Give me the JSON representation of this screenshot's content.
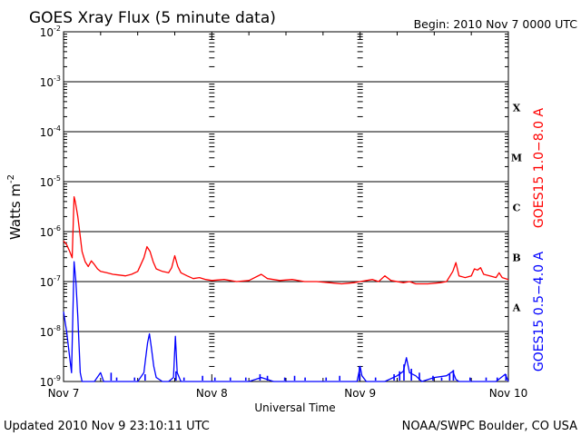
{
  "chart_data": {
    "type": "line",
    "title": "GOES Xray Flux (5 minute data)",
    "begin_label": "Begin:  2010 Nov 7 0000 UTC",
    "xlabel": "Universal Time",
    "ylabel": "Watts m",
    "ylabel_sup": "-2",
    "y_scale": "log",
    "ylim": [
      1e-09,
      0.01
    ],
    "y_ticks": [
      {
        "base": "10",
        "exp": "-2",
        "value": -2
      },
      {
        "base": "10",
        "exp": "-3",
        "value": -3
      },
      {
        "base": "10",
        "exp": "-4",
        "value": -4
      },
      {
        "base": "10",
        "exp": "-5",
        "value": -5
      },
      {
        "base": "10",
        "exp": "-6",
        "value": -6
      },
      {
        "base": "10",
        "exp": "-7",
        "value": -7
      },
      {
        "base": "10",
        "exp": "-8",
        "value": -8
      },
      {
        "base": "10",
        "exp": "-9",
        "value": -9
      }
    ],
    "x_range_hours": [
      0,
      72
    ],
    "x_ticks": [
      {
        "label": "Nov 7",
        "hour": 0
      },
      {
        "label": "Nov 8",
        "hour": 24
      },
      {
        "label": "Nov 9",
        "hour": 48
      },
      {
        "label": "Nov 10",
        "hour": 72
      }
    ],
    "flare_classes": [
      {
        "label": "X",
        "log_min": -4
      },
      {
        "label": "M",
        "log_min": -5
      },
      {
        "label": "C",
        "log_min": -6
      },
      {
        "label": "B",
        "log_min": -7
      },
      {
        "label": "A",
        "log_min": -8
      }
    ],
    "series": [
      {
        "name": "GOES15 1.0−8.0 A",
        "color": "#ff0000",
        "points": [
          [
            0,
            6.5e-07
          ],
          [
            0.5,
            5.5e-07
          ],
          [
            1,
            4e-07
          ],
          [
            1.4,
            3e-07
          ],
          [
            1.7,
            5e-06
          ],
          [
            1.9,
            4e-06
          ],
          [
            2.3,
            2e-06
          ],
          [
            2.7,
            8e-07
          ],
          [
            3,
            4e-07
          ],
          [
            3.5,
            2.5e-07
          ],
          [
            4,
            2e-07
          ],
          [
            4.5,
            2.6e-07
          ],
          [
            5,
            2.2e-07
          ],
          [
            5.5,
            1.8e-07
          ],
          [
            6,
            1.6e-07
          ],
          [
            7,
            1.5e-07
          ],
          [
            8,
            1.4e-07
          ],
          [
            9,
            1.35e-07
          ],
          [
            10,
            1.3e-07
          ],
          [
            11,
            1.4e-07
          ],
          [
            12,
            1.6e-07
          ],
          [
            13,
            3e-07
          ],
          [
            13.5,
            5e-07
          ],
          [
            14,
            4e-07
          ],
          [
            14.5,
            2.5e-07
          ],
          [
            15,
            1.8e-07
          ],
          [
            16,
            1.6e-07
          ],
          [
            17,
            1.5e-07
          ],
          [
            17.5,
            1.9e-07
          ],
          [
            18,
            3.3e-07
          ],
          [
            18.5,
            2e-07
          ],
          [
            19,
            1.5e-07
          ],
          [
            20,
            1.3e-07
          ],
          [
            21,
            1.15e-07
          ],
          [
            22,
            1.2e-07
          ],
          [
            23,
            1.1e-07
          ],
          [
            24,
            1.05e-07
          ],
          [
            26,
            1.1e-07
          ],
          [
            28,
            1e-07
          ],
          [
            30,
            1.05e-07
          ],
          [
            32,
            1.4e-07
          ],
          [
            33,
            1.15e-07
          ],
          [
            35,
            1.05e-07
          ],
          [
            37,
            1.1e-07
          ],
          [
            39,
            1e-07
          ],
          [
            41,
            1e-07
          ],
          [
            43,
            9.5e-08
          ],
          [
            45,
            9e-08
          ],
          [
            47,
            9.5e-08
          ],
          [
            48,
            1e-07
          ],
          [
            50,
            1.1e-07
          ],
          [
            51,
            1e-07
          ],
          [
            52,
            1.3e-07
          ],
          [
            53,
            1.05e-07
          ],
          [
            55,
            9.5e-08
          ],
          [
            56,
            1e-07
          ],
          [
            57,
            9e-08
          ],
          [
            59,
            9e-08
          ],
          [
            61,
            9.5e-08
          ],
          [
            62,
            1e-07
          ],
          [
            63,
            1.6e-07
          ],
          [
            63.5,
            2.4e-07
          ],
          [
            64,
            1.3e-07
          ],
          [
            65,
            1.2e-07
          ],
          [
            66,
            1.3e-07
          ],
          [
            66.5,
            1.8e-07
          ],
          [
            67,
            1.7e-07
          ],
          [
            67.5,
            1.9e-07
          ],
          [
            68,
            1.4e-07
          ],
          [
            69,
            1.3e-07
          ],
          [
            70,
            1.2e-07
          ],
          [
            70.5,
            1.5e-07
          ],
          [
            71,
            1.2e-07
          ],
          [
            72,
            1.1e-07
          ]
        ]
      },
      {
        "name": "GOES15 0.5−4.0 A",
        "color": "#0000ff",
        "points": [
          [
            0,
            2.5e-08
          ],
          [
            0.5,
            1e-08
          ],
          [
            1,
            3e-09
          ],
          [
            1.3,
            1.5e-09
          ],
          [
            1.7,
            2.5e-07
          ],
          [
            2,
            1e-07
          ],
          [
            2.3,
            2e-08
          ],
          [
            2.7,
            1.5e-09
          ],
          [
            3,
            1e-09
          ],
          [
            4,
            1e-09
          ],
          [
            5,
            1e-09
          ],
          [
            6,
            1.5e-09
          ],
          [
            6.5,
            1e-09
          ],
          [
            8,
            1e-09
          ],
          [
            10,
            1e-09
          ],
          [
            12,
            1e-09
          ],
          [
            13,
            1.5e-09
          ],
          [
            13.3,
            3e-09
          ],
          [
            13.6,
            6e-09
          ],
          [
            13.9,
            9e-09
          ],
          [
            14.2,
            5e-09
          ],
          [
            14.6,
            2e-09
          ],
          [
            15,
            1.2e-09
          ],
          [
            16,
            1e-09
          ],
          [
            17,
            1e-09
          ],
          [
            17.8,
            1.2e-09
          ],
          [
            18.1,
            8e-09
          ],
          [
            18.4,
            1.5e-09
          ],
          [
            19,
            1e-09
          ],
          [
            22,
            1e-09
          ],
          [
            26,
            1e-09
          ],
          [
            30,
            1e-09
          ],
          [
            32,
            1.2e-09
          ],
          [
            34,
            1e-09
          ],
          [
            38,
            1e-09
          ],
          [
            42,
            1e-09
          ],
          [
            46,
            1e-09
          ],
          [
            47.5,
            1e-09
          ],
          [
            48,
            2e-09
          ],
          [
            48.3,
            1.3e-09
          ],
          [
            49,
            1e-09
          ],
          [
            52,
            1e-09
          ],
          [
            54,
            1.3e-09
          ],
          [
            55,
            1.6e-09
          ],
          [
            55.5,
            3e-09
          ],
          [
            56,
            1.5e-09
          ],
          [
            57,
            1.3e-09
          ],
          [
            58,
            1e-09
          ],
          [
            60,
            1.2e-09
          ],
          [
            62,
            1.3e-09
          ],
          [
            63,
            1.6e-09
          ],
          [
            63.5,
            1.1e-09
          ],
          [
            64,
            1e-09
          ],
          [
            67,
            1e-09
          ],
          [
            70,
            1e-09
          ],
          [
            71.5,
            1.4e-09
          ],
          [
            72,
            1e-09
          ]
        ]
      }
    ],
    "blue_spikes": [
      [
        7.7,
        1.5e-09
      ],
      [
        8.6,
        1.2e-09
      ],
      [
        11.5,
        1.2e-09
      ],
      [
        13.2,
        1.4e-09
      ],
      [
        18.2,
        1.6e-09
      ],
      [
        19.5,
        1.2e-09
      ],
      [
        22.5,
        1.3e-09
      ],
      [
        24.5,
        1.2e-09
      ],
      [
        27,
        1.2e-09
      ],
      [
        29.5,
        1.2e-09
      ],
      [
        31.8,
        1.4e-09
      ],
      [
        33,
        1.3e-09
      ],
      [
        35.8,
        1.2e-09
      ],
      [
        37.4,
        1.3e-09
      ],
      [
        39.1,
        1.2e-09
      ],
      [
        42.5,
        1.2e-09
      ],
      [
        44.7,
        1.3e-09
      ],
      [
        47.9,
        2e-09
      ],
      [
        50.5,
        1.2e-09
      ],
      [
        53.5,
        1.4e-09
      ],
      [
        54.4,
        1.6e-09
      ],
      [
        55.1,
        2.2e-09
      ],
      [
        56.3,
        1.8e-09
      ],
      [
        57.6,
        1.5e-09
      ],
      [
        59.8,
        1.3e-09
      ],
      [
        61.2,
        1.2e-09
      ],
      [
        62.5,
        1.4e-09
      ],
      [
        63.1,
        1.7e-09
      ],
      [
        65.8,
        1.2e-09
      ],
      [
        68.4,
        1.2e-09
      ],
      [
        70.2,
        1.2e-09
      ],
      [
        71.6,
        1.4e-09
      ]
    ]
  },
  "footer": {
    "updated": "Updated 2010 Nov  9 23:10:11 UTC",
    "source": "NOAA/SWPC Boulder, CO USA"
  }
}
